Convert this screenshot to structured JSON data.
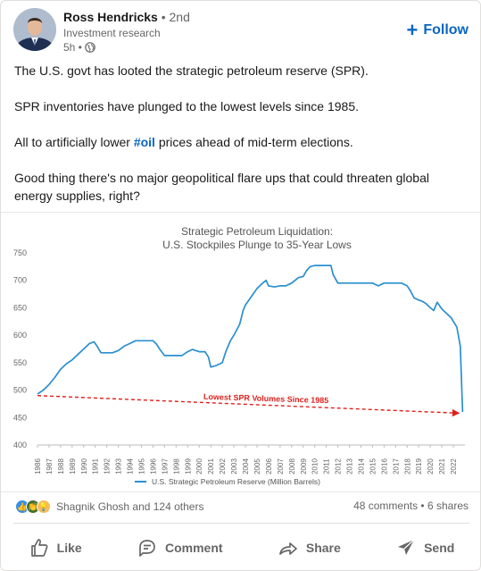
{
  "post": {
    "author": {
      "name": "Ross Hendricks",
      "degree": "• 2nd",
      "headline": "Investment research",
      "time": "5h •"
    },
    "follow_label": "Follow",
    "text": {
      "p1": "The U.S. govt has looted the strategic petroleum reserve (SPR).",
      "p2": "SPR inventories have plunged to the lowest levels since 1985.",
      "p3_before": "All to artificially lower ",
      "p3_hashtag": "#oil",
      "p3_after": " prices ahead of mid-term elections.",
      "p4": "Good thing there's no major geopolitical flare ups that could threaten global energy supplies, right?"
    }
  },
  "chart_data": {
    "type": "line",
    "title": "Strategic Petroleum Liquidation:",
    "subtitle": "U.S. Stockpiles Plunge to 35-Year Lows",
    "ylim": [
      400,
      750
    ],
    "yticks": [
      400,
      450,
      500,
      550,
      600,
      650,
      700,
      750
    ],
    "xlim": [
      1986,
      2023
    ],
    "xticks": [
      "1986",
      "1987",
      "1988",
      "1989",
      "1990",
      "1991",
      "1992",
      "1993",
      "1994",
      "1995",
      "1996",
      "1997",
      "1998",
      "1999",
      "2000",
      "2001",
      "2002",
      "2003",
      "2004",
      "2005",
      "2006",
      "2007",
      "2008",
      "2009",
      "2010",
      "2011",
      "2012",
      "2013",
      "2014",
      "2015",
      "2016",
      "2017",
      "2018",
      "2019",
      "2020",
      "2021",
      "2022"
    ],
    "series": [
      {
        "name": "U.S. Strategic Petroleum Reserve (Million Barrels)",
        "color": "#2a8fd0",
        "x": [
          1986.0,
          1986.5,
          1987.0,
          1987.5,
          1988.0,
          1988.5,
          1989.0,
          1989.5,
          1990.0,
          1990.5,
          1990.9,
          1991.1,
          1991.5,
          1992.0,
          1992.5,
          1993.0,
          1993.5,
          1994.0,
          1994.5,
          1995.0,
          1995.5,
          1996.0,
          1996.3,
          1996.6,
          1997.0,
          1997.5,
          1998.0,
          1998.5,
          1999.0,
          1999.4,
          2000.0,
          2000.5,
          2000.8,
          2001.0,
          2001.5,
          2002.0,
          2002.3,
          2002.7,
          2003.0,
          2003.5,
          2003.8,
          2004.0,
          2004.5,
          2005.0,
          2005.5,
          2005.8,
          2006.0,
          2006.5,
          2007.0,
          2007.5,
          2008.0,
          2008.3,
          2008.6,
          2009.0,
          2009.3,
          2009.6,
          2010.0,
          2010.5,
          2011.0,
          2011.4,
          2011.6,
          2012.0,
          2012.5,
          2013.0,
          2014.0,
          2015.0,
          2015.5,
          2016.0,
          2016.5,
          2017.0,
          2017.5,
          2018.0,
          2018.3,
          2018.6,
          2019.0,
          2019.3,
          2019.6,
          2020.0,
          2020.3,
          2020.6,
          2021.0,
          2021.4,
          2021.8,
          2022.0,
          2022.3,
          2022.6,
          2022.8
        ],
        "values": [
          493,
          500,
          510,
          523,
          538,
          548,
          555,
          565,
          575,
          585,
          588,
          582,
          568,
          568,
          568,
          572,
          580,
          585,
          590,
          590,
          590,
          590,
          584,
          574,
          563,
          563,
          563,
          563,
          570,
          574,
          570,
          570,
          560,
          542,
          545,
          550,
          570,
          590,
          600,
          620,
          645,
          655,
          670,
          685,
          695,
          700,
          690,
          688,
          690,
          690,
          695,
          700,
          705,
          707,
          718,
          725,
          727,
          727,
          727,
          727,
          710,
          695,
          695,
          695,
          695,
          695,
          690,
          695,
          695,
          695,
          695,
          690,
          680,
          668,
          664,
          662,
          658,
          650,
          645,
          660,
          648,
          640,
          632,
          625,
          615,
          580,
          460
        ]
      }
    ],
    "annotation": {
      "text": "Lowest SPR Volumes Since 1985",
      "color": "#e0201c",
      "x_start": 1986.0,
      "y_start": 490,
      "x_end": 2022.8,
      "y_end": 458
    },
    "legend": "bottom-center",
    "grid": false
  },
  "social": {
    "reactors": "Shagnik Ghosh and 124 others",
    "stats": "48 comments • 6 shares"
  },
  "actions": {
    "like": "Like",
    "comment": "Comment",
    "share": "Share",
    "send": "Send"
  }
}
